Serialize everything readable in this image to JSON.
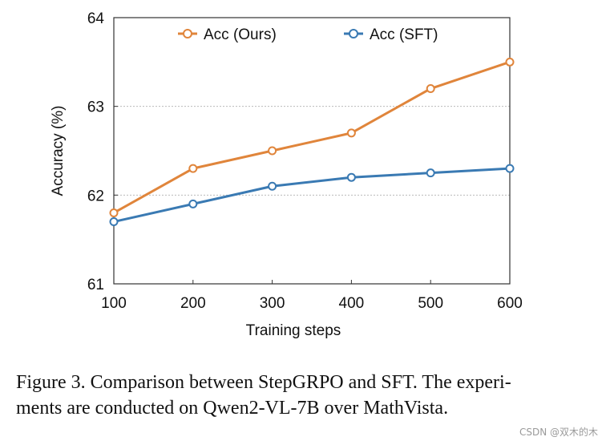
{
  "chart_data": {
    "type": "line",
    "categories": [
      100,
      200,
      300,
      400,
      500,
      600
    ],
    "x": [
      100,
      200,
      300,
      400,
      500,
      600
    ],
    "series": [
      {
        "name": "Acc (Ours)",
        "color": "#e0853b",
        "values": [
          61.8,
          62.3,
          62.5,
          62.7,
          63.2,
          63.5
        ]
      },
      {
        "name": "Acc (SFT)",
        "color": "#3a7ab3",
        "values": [
          61.7,
          61.9,
          62.1,
          62.2,
          62.25,
          62.3
        ]
      }
    ],
    "title": "",
    "xlabel": "Training steps",
    "ylabel": "Accuracy (%)",
    "ylim": [
      61,
      64
    ],
    "xlim": [
      100,
      600
    ],
    "yticks": [
      61,
      62,
      63,
      64
    ],
    "xticks": [
      100,
      200,
      300,
      400,
      500,
      600
    ],
    "grid": "horizontal dotted",
    "legend": "top"
  },
  "caption": {
    "line1": "Figure 3.  Comparison between StepGRPO and SFT. The experi-",
    "line2": "ments are conducted on Qwen2-VL-7B over MathVista."
  },
  "watermark": "CSDN @双木的木"
}
